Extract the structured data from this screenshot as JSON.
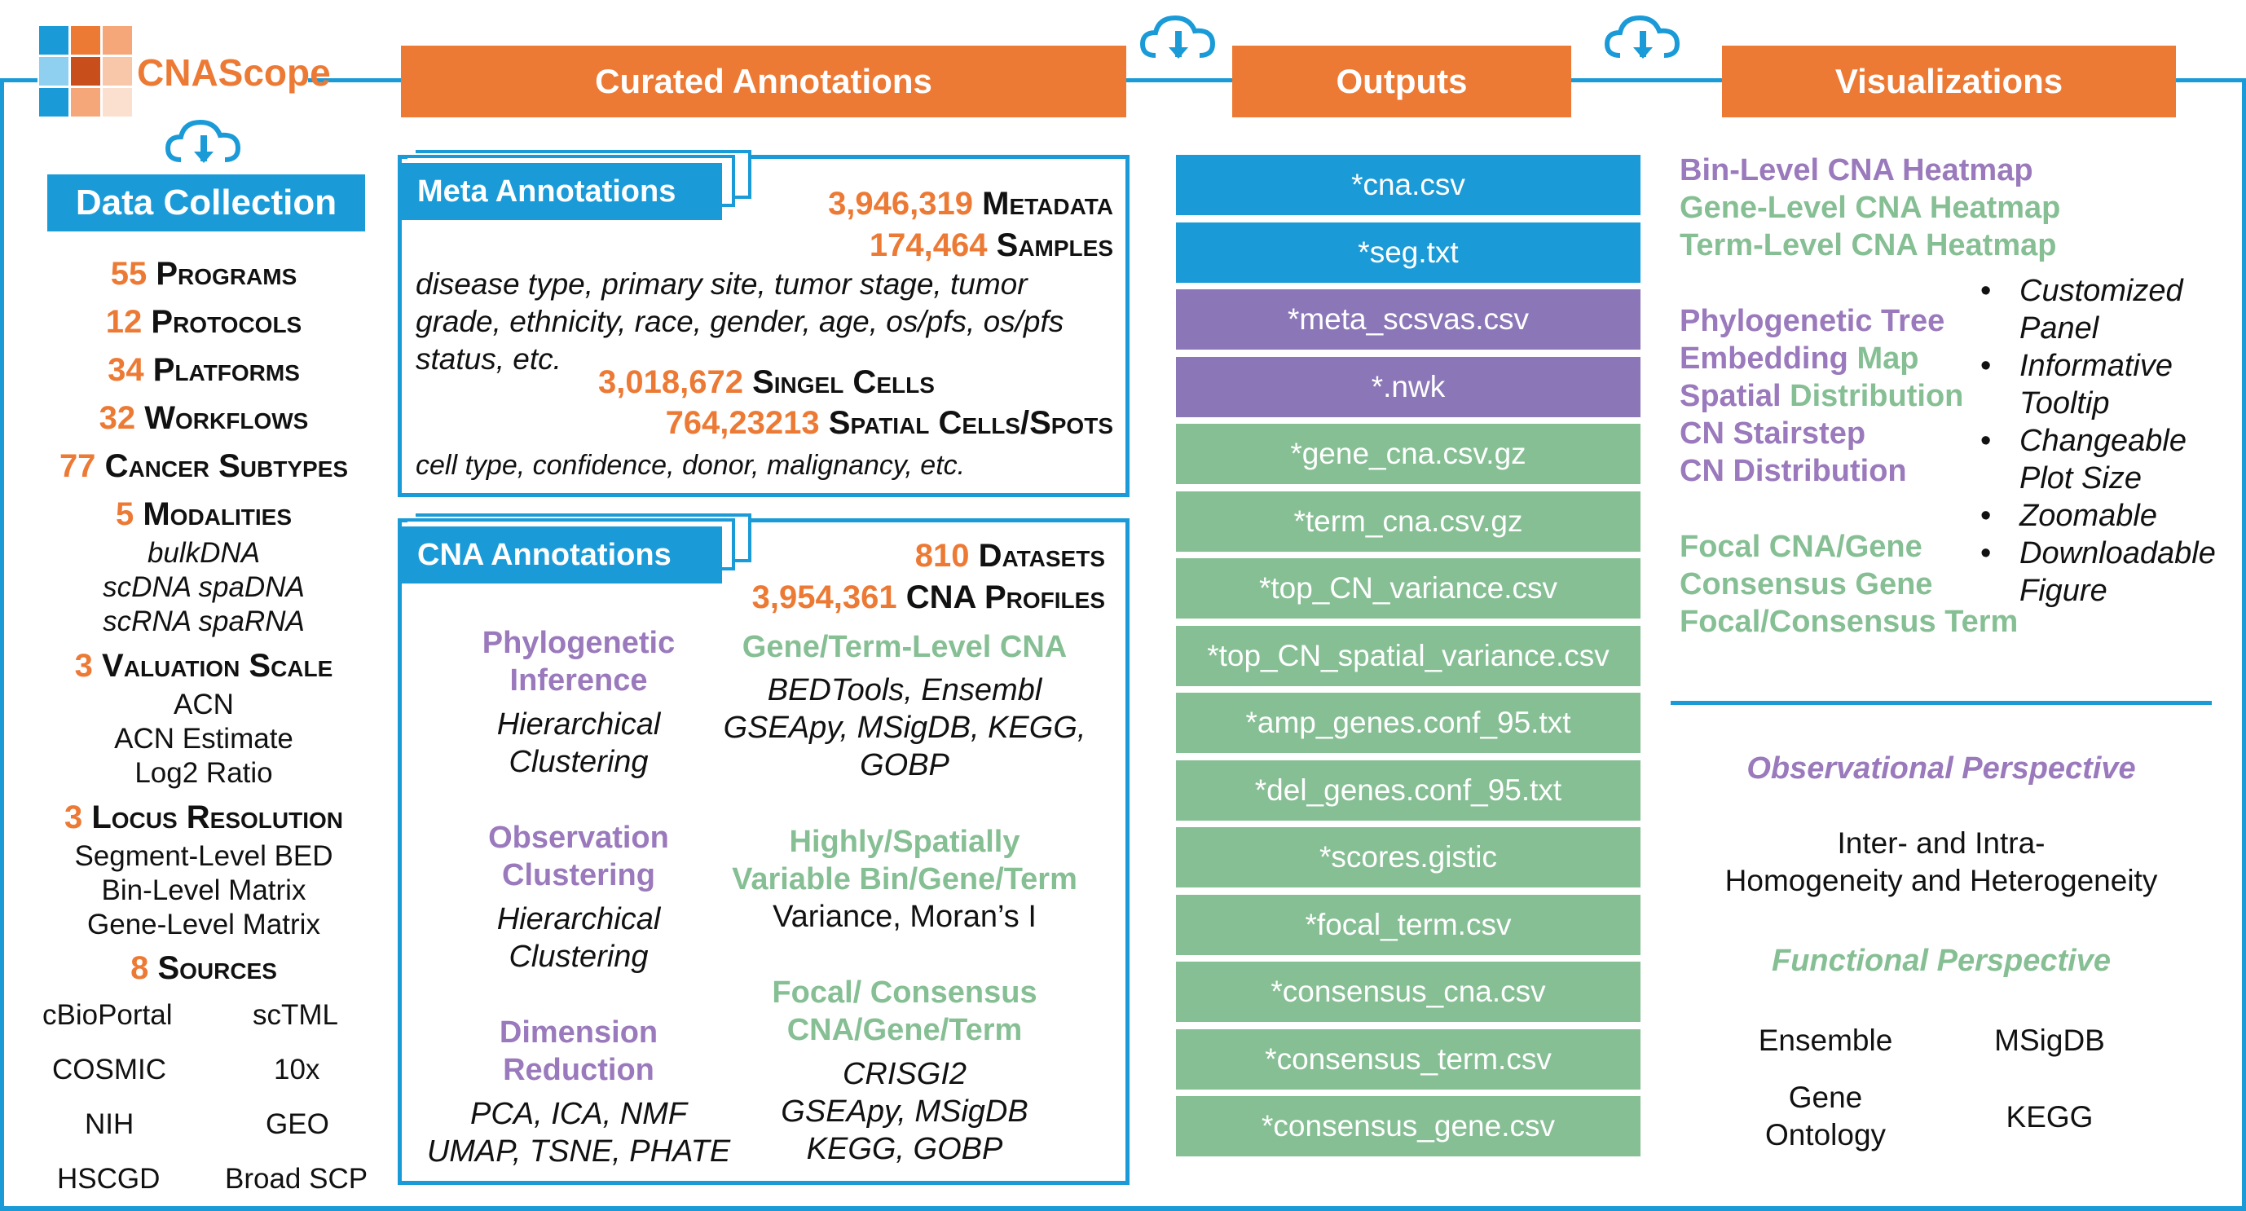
{
  "logo": {
    "text": "CNAScope"
  },
  "colors": {
    "blue": "#1a9bd8",
    "orange": "#ec7a35",
    "purple": "#9a79bc",
    "green": "#86bf94"
  },
  "headers": {
    "curated": "Curated Annotations",
    "outputs": "Outputs",
    "visualizations": "Visualizations"
  },
  "data_collection": {
    "title": "Data Collection",
    "stats": [
      {
        "num": "55",
        "label": "Programs"
      },
      {
        "num": "12",
        "label": "Protocols"
      },
      {
        "num": "34",
        "label": "Platforms"
      },
      {
        "num": "32",
        "label": "Workflows"
      },
      {
        "num": "77",
        "label": "Cancer Subtypes"
      },
      {
        "num": "5",
        "label": "Modalities"
      },
      {
        "num": "3",
        "label": "Valuation Scale"
      },
      {
        "num": "3",
        "label": "Locus Resolution"
      },
      {
        "num": "8",
        "label": "Sources"
      }
    ],
    "modalities": [
      "bulkDNA",
      "scDNA spaDNA",
      "scRNA spaRNA"
    ],
    "valuation": [
      "ACN",
      "ACN Estimate",
      "Log2 Ratio"
    ],
    "locus": [
      "Segment-Level BED",
      "Bin-Level Matrix",
      "Gene-Level Matrix"
    ],
    "sources": [
      "cBioPortal",
      "scTML",
      "COSMIC",
      "10x",
      "NIH",
      "GEO",
      "HSCGD",
      "Broad SCP"
    ]
  },
  "meta": {
    "tab": "Meta Annotations",
    "metadata_num": "3,946,319",
    "metadata_label": "Metadata",
    "samples_num": "174,464",
    "samples_label": "Samples",
    "desc": [
      "disease type, primary site, tumor stage, tumor",
      "grade, ethnicity, race, gender, age, os/pfs, os/pfs",
      "status, etc."
    ],
    "cells_num": "3,018,672",
    "cells_label": "Singel Cells",
    "spatial_num": "764,23213",
    "spatial_label": "Spatial Cells/Spots",
    "cell_desc": "cell type, confidence, donor, malignancy, etc."
  },
  "cna": {
    "tab": "CNA Annotations",
    "datasets_num": "810",
    "datasets_label": "Datasets",
    "profiles_num": "3,954,361",
    "profiles_label": "CNA Profiles",
    "phylo_title": [
      "Phylogenetic",
      "Inference"
    ],
    "phylo_method": [
      "Hierarchical",
      "Clustering"
    ],
    "obs_title": [
      "Observation",
      "Clustering"
    ],
    "obs_method": [
      "Hierarchical",
      "Clustering"
    ],
    "dim_title": [
      "Dimension",
      "Reduction"
    ],
    "dim_method": [
      "PCA, ICA, NMF",
      "UMAP, TSNE, PHATE"
    ],
    "gene_title": "Gene/Term-Level CNA",
    "gene_method": [
      "BEDTools, Ensembl",
      "GSEApy, MSigDB, KEGG,",
      "GOBP"
    ],
    "hv_title": [
      "Highly/Spatially",
      "Variable Bin/Gene/Term"
    ],
    "hv_method": "Variance, Moran’s I",
    "focal_title": [
      "Focal/ Consensus",
      "CNA/Gene/Term"
    ],
    "focal_method": [
      "CRISGI2",
      "GSEApy, MSigDB",
      "KEGG, GOBP"
    ]
  },
  "outputs": [
    {
      "label": "*cna.csv",
      "color": "blue"
    },
    {
      "label": "*seg.txt",
      "color": "blue"
    },
    {
      "label": "*meta_scsvas.csv",
      "color": "purple"
    },
    {
      "label": "*.nwk",
      "color": "purple"
    },
    {
      "label": "*gene_cna.csv.gz",
      "color": "green"
    },
    {
      "label": "*term_cna.csv.gz",
      "color": "green"
    },
    {
      "label": "*top_CN_variance.csv",
      "color": "green"
    },
    {
      "label": "*top_CN_spatial_variance.csv",
      "color": "green"
    },
    {
      "label": "*amp_genes.conf_95.txt",
      "color": "green"
    },
    {
      "label": "*del_genes.conf_95.txt",
      "color": "green"
    },
    {
      "label": "*scores.gistic",
      "color": "green"
    },
    {
      "label": "*focal_term.csv",
      "color": "green"
    },
    {
      "label": "*consensus_cna.csv",
      "color": "green"
    },
    {
      "label": "*consensus_term.csv",
      "color": "green"
    },
    {
      "label": "*consensus_gene.csv",
      "color": "green"
    }
  ],
  "viz": {
    "heatmaps": [
      "Bin-Level CNA Heatmap",
      "Gene-Level CNA Heatmap",
      "Term-Level CNA Heatmap"
    ],
    "phylo": "Phylogenetic Tree",
    "embed_a": "Embedding",
    "embed_b": "Map",
    "spatial_a": "Spatial",
    "spatial_b": "Distribution",
    "stairstep": "CN Stairstep",
    "distribution": "CN Distribution",
    "focal": [
      "Focal CNA/Gene",
      "Consensus Gene",
      "Focal/Consensus Term"
    ],
    "features": [
      "Customized",
      "Panel",
      "Informative",
      "Tooltip",
      "Changeable",
      "Plot Size",
      "Zoomable",
      "Downloadable",
      "Figure"
    ],
    "obs_title": "Observational Perspective",
    "obs_text": [
      "Inter- and Intra-",
      "Homogeneity and Heterogeneity"
    ],
    "func_title": "Functional Perspective",
    "func_items": [
      "Ensemble",
      "MSigDB",
      "Gene",
      "Ontology",
      "KEGG"
    ]
  }
}
